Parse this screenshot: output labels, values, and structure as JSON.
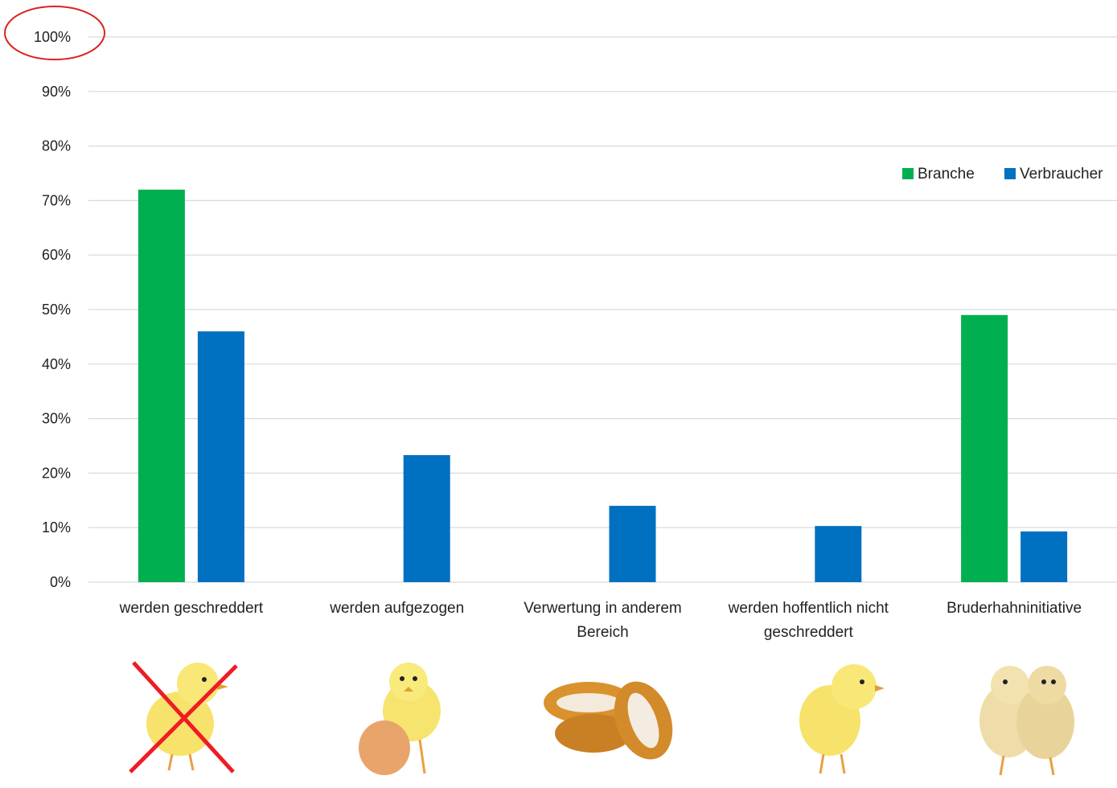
{
  "chart_data": {
    "type": "bar",
    "title": "",
    "xlabel": "",
    "ylabel": "",
    "ylim": [
      0,
      100
    ],
    "yticks": [
      "0%",
      "10%",
      "20%",
      "30%",
      "40%",
      "50%",
      "60%",
      "70%",
      "80%",
      "90%",
      "100%"
    ],
    "grid": true,
    "legend_position": "top-right",
    "categories": [
      [
        "werden geschreddert"
      ],
      [
        "werden aufgezogen"
      ],
      [
        "Verwertung in anderem",
        "Bereich"
      ],
      [
        "werden hoffentlich nicht",
        "geschreddert"
      ],
      [
        "Bruderhahninitiative"
      ]
    ],
    "series": [
      {
        "name": "Branche",
        "color": "#00b050",
        "values": [
          72,
          null,
          null,
          null,
          49
        ]
      },
      {
        "name": "Verbraucher",
        "color": "#0070c0",
        "values": [
          46,
          23.3,
          14,
          10.3,
          9.3
        ]
      }
    ],
    "annotations": {
      "highlight_ring": {
        "target_tick": "100%",
        "color": "#e02020"
      }
    }
  },
  "illustrations": [
    {
      "name": "crossed-out-chick-icon",
      "category_index": 0
    },
    {
      "name": "chick-with-egg-icon",
      "category_index": 1
    },
    {
      "name": "chicken-nuggets-icon",
      "category_index": 2
    },
    {
      "name": "chick-icon",
      "category_index": 3
    },
    {
      "name": "two-chicks-icon",
      "category_index": 4
    }
  ]
}
